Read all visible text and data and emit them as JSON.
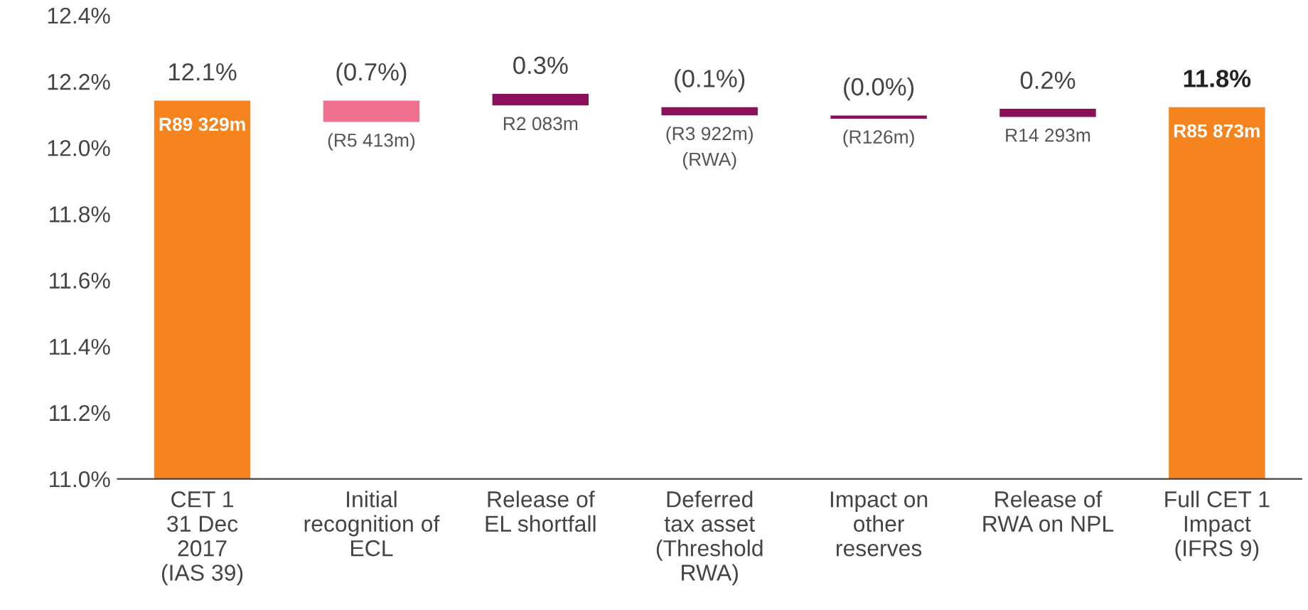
{
  "chart_data": {
    "type": "bar",
    "categories": [
      "CET 1\n31 Dec\n2017\n(IAS 39)",
      "Initial\nrecognition of\nECL",
      "Release of\nEL shortfall",
      "Deferred\ntax asset\n(Threshold\nRWA)",
      "Impact on\nother\nreserves",
      "Release of\nRWA on NPL",
      "Full CET 1\nImpact\n(IFRS 9)"
    ],
    "values": [
      1.14,
      0.06,
      0.03,
      0.02,
      0.005,
      0.02,
      1.12
    ],
    "base": [
      11.0,
      12.08,
      12.13,
      12.1,
      12.09,
      12.095,
      11.0
    ],
    "colors": [
      "#f5841f",
      "#f07090",
      "#8b0f5a",
      "#8b0f5a",
      "#8b0f5a",
      "#8b0f5a",
      "#f5841f"
    ],
    "annotations": [
      "12.1%",
      "(0.7%)",
      "0.3%",
      "(0.1%)",
      "(0.0%)",
      "0.2%",
      "11.8%",
      "R89 329m",
      "(R5 413m)",
      "R2 083m",
      "(R3 922m)\n(RWA)",
      "(R126m)",
      "R14 293m",
      "R85 873m"
    ],
    "ylim": [
      11.0,
      12.4
    ],
    "yticks": [
      {
        "value": 11.0,
        "label": "11.0%"
      },
      {
        "value": 11.2,
        "label": "11.2%"
      },
      {
        "value": 11.4,
        "label": "11.4%"
      },
      {
        "value": 11.6,
        "label": "11.6%"
      },
      {
        "value": 11.8,
        "label": "11.8%"
      },
      {
        "value": 12.0,
        "label": "12.0%"
      },
      {
        "value": 12.2,
        "label": "12.2%"
      },
      {
        "value": 12.4,
        "label": "12.4%"
      }
    ],
    "grid": false
  }
}
